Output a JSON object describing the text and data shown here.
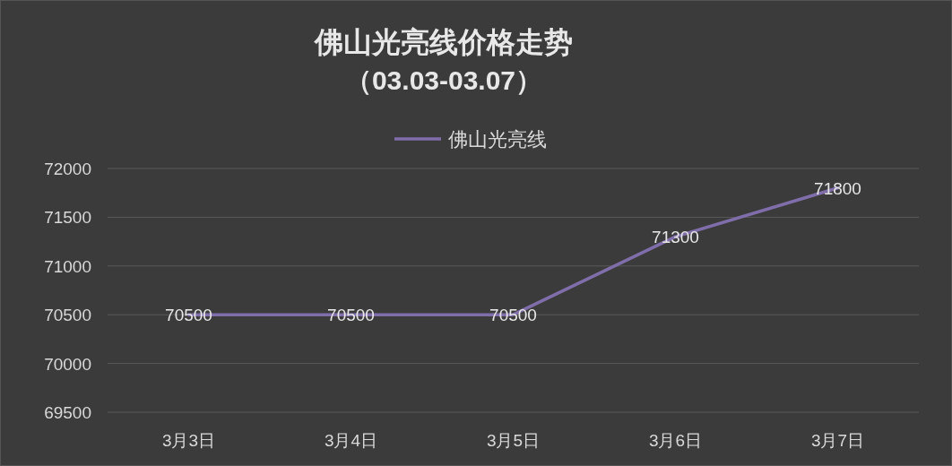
{
  "chart_data": {
    "type": "line",
    "title": "佛山光亮线价格走势",
    "subtitle": "（03.03-03.07）",
    "categories": [
      "3月3日",
      "3月4日",
      "3月5日",
      "3月6日",
      "3月7日"
    ],
    "series": [
      {
        "name": "佛山光亮线",
        "color": "#7f6eaa",
        "values": [
          70500,
          70500,
          70500,
          71300,
          71800
        ]
      }
    ],
    "ylim": [
      69500,
      72000
    ],
    "yticks": [
      69500,
      70000,
      70500,
      71000,
      71500,
      72000
    ],
    "grid": "y",
    "legend": "top",
    "data_labels": true,
    "marker": "none",
    "line_style": "solid"
  }
}
